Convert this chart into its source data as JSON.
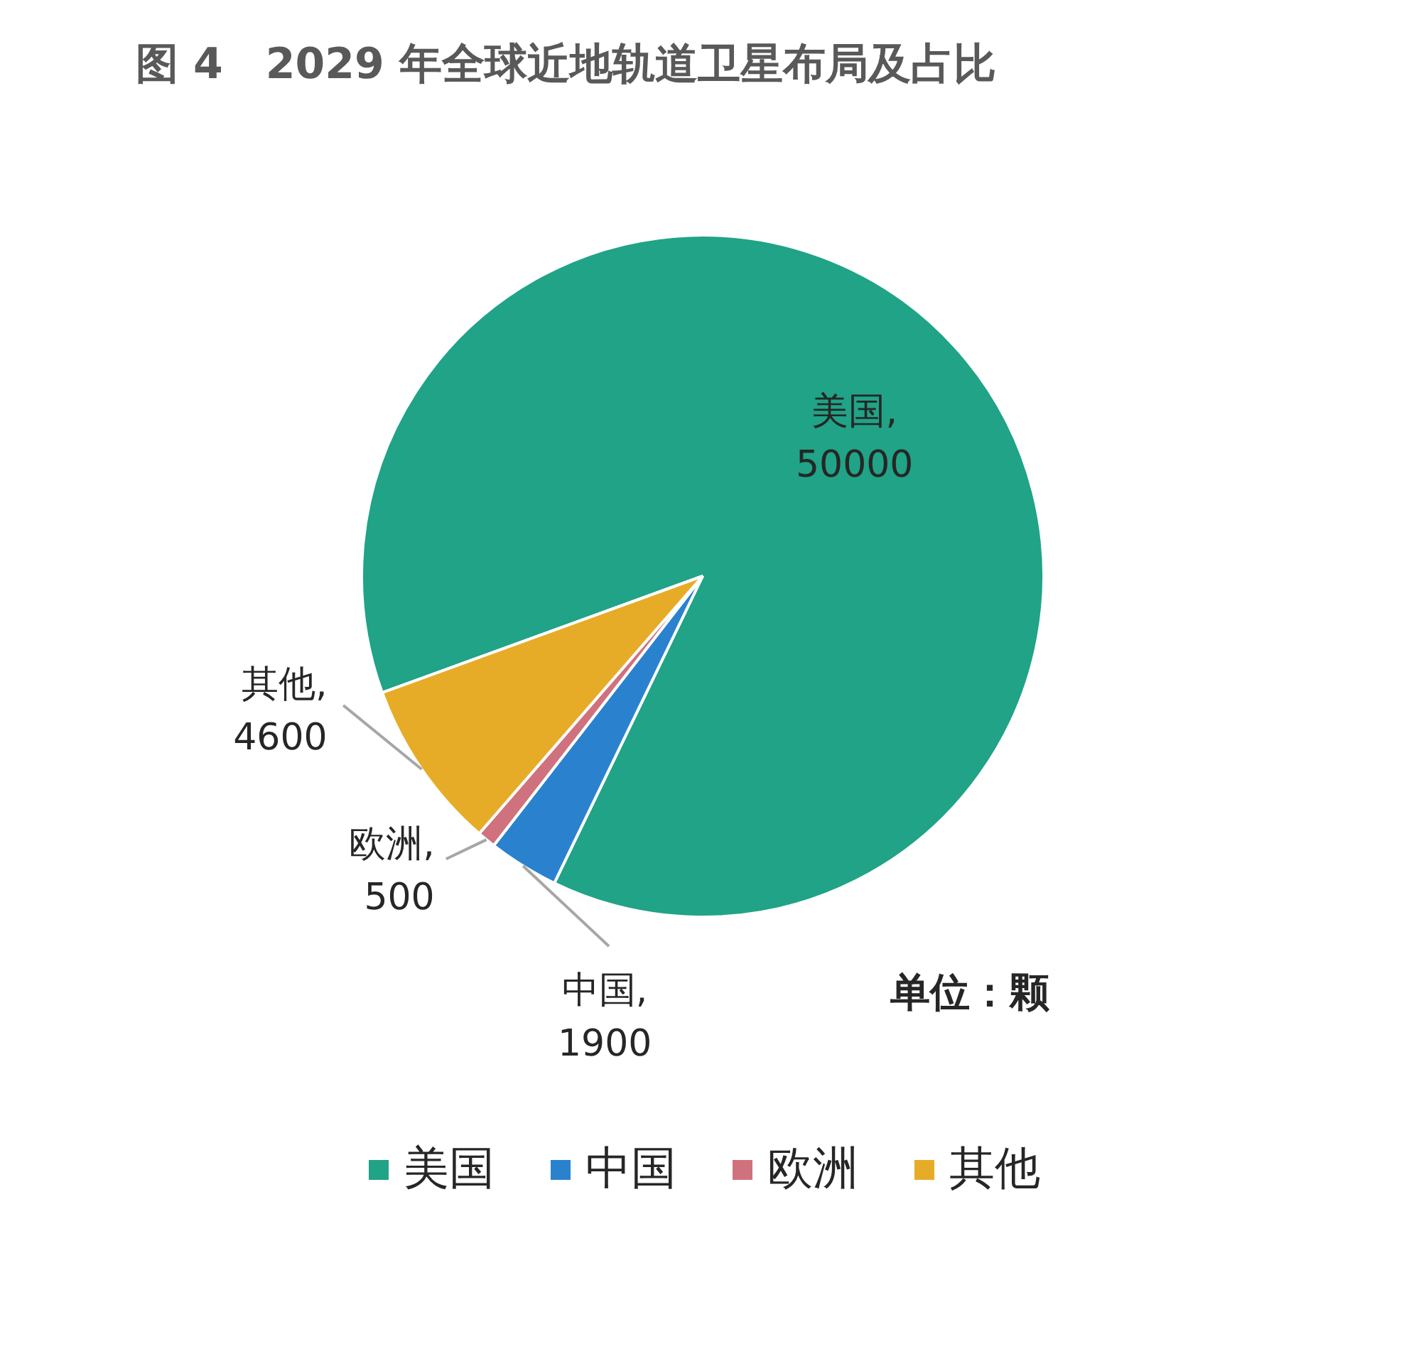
{
  "chart_data": {
    "type": "pie",
    "title": "图 4　2029 年全球近地轨道卫星布局及占比",
    "categories": [
      "美国",
      "中国",
      "欧洲",
      "其他"
    ],
    "values": [
      50000,
      1900,
      500,
      4600
    ],
    "colors": [
      "#20a386",
      "#2a82cf",
      "#cf727e",
      "#e7ac27"
    ],
    "value_labels": [
      "美国,\n50000",
      "中国,\n1900",
      "欧洲,\n500",
      "其他,\n4600"
    ],
    "annotations": [
      "单位：颗"
    ],
    "legend": "bottom"
  }
}
